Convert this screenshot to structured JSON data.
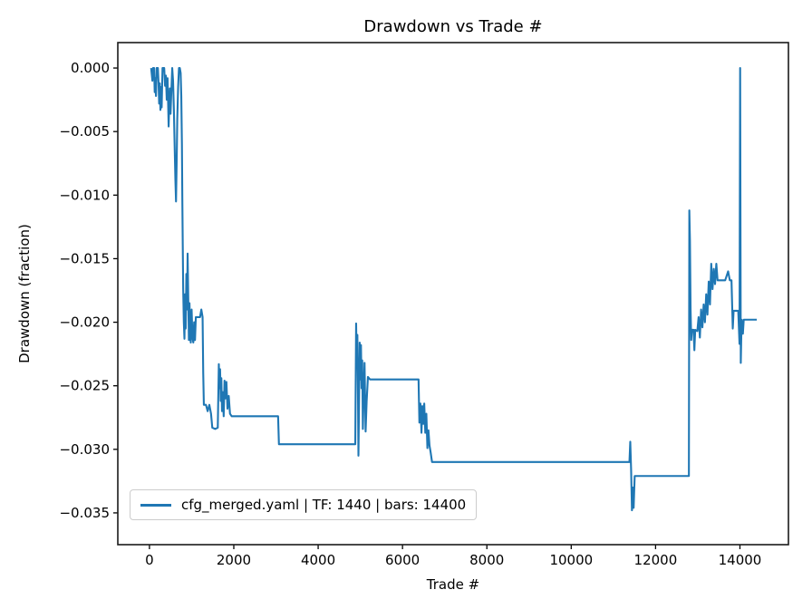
{
  "chart_data": {
    "type": "line",
    "title": "Drawdown vs Trade #",
    "xlabel": "Trade #",
    "ylabel": "Drawdown (fraction)",
    "xlim": [
      -750,
      15150
    ],
    "ylim": [
      -0.0375,
      0.002
    ],
    "grid": false,
    "legend_position": "lower-left",
    "line_color": "#1f77b4",
    "x_ticks": [
      {
        "v": 0,
        "label": "0"
      },
      {
        "v": 2000,
        "label": "2000"
      },
      {
        "v": 4000,
        "label": "4000"
      },
      {
        "v": 6000,
        "label": "6000"
      },
      {
        "v": 8000,
        "label": "8000"
      },
      {
        "v": 10000,
        "label": "10000"
      },
      {
        "v": 12000,
        "label": "12000"
      },
      {
        "v": 14000,
        "label": "14000"
      }
    ],
    "y_ticks": [
      {
        "v": 0.0,
        "label": "0.000"
      },
      {
        "v": -0.005,
        "label": "−0.005"
      },
      {
        "v": -0.01,
        "label": "−0.010"
      },
      {
        "v": -0.015,
        "label": "−0.015"
      },
      {
        "v": -0.02,
        "label": "−0.020"
      },
      {
        "v": -0.025,
        "label": "−0.025"
      },
      {
        "v": -0.03,
        "label": "−0.030"
      },
      {
        "v": -0.035,
        "label": "−0.035"
      }
    ],
    "series": [
      {
        "name": "cfg_merged.yaml | TF: 1440 | bars: 14400",
        "color": "#1f77b4",
        "points": [
          [
            40,
            0
          ],
          [
            70,
            -0.001
          ],
          [
            85,
            0
          ],
          [
            110,
            0
          ],
          [
            125,
            -0.0019
          ],
          [
            140,
            -0.0008
          ],
          [
            155,
            -0.0022
          ],
          [
            170,
            0
          ],
          [
            200,
            0
          ],
          [
            215,
            -0.0011
          ],
          [
            230,
            -0.0028
          ],
          [
            245,
            -0.0012
          ],
          [
            260,
            -0.0033
          ],
          [
            275,
            -0.0015
          ],
          [
            290,
            -0.0031
          ],
          [
            310,
            0
          ],
          [
            350,
            0
          ],
          [
            370,
            -0.0014
          ],
          [
            390,
            -0.0006
          ],
          [
            410,
            -0.0025
          ],
          [
            430,
            -0.0008
          ],
          [
            455,
            -0.0046
          ],
          [
            470,
            -0.0028
          ],
          [
            485,
            -0.0016
          ],
          [
            500,
            -0.0036
          ],
          [
            520,
            -0.0018
          ],
          [
            540,
            0
          ],
          [
            560,
            -0.001
          ],
          [
            580,
            -0.0034
          ],
          [
            600,
            -0.0065
          ],
          [
            615,
            -0.0088
          ],
          [
            630,
            -0.0105
          ],
          [
            645,
            -0.0075
          ],
          [
            660,
            -0.004
          ],
          [
            680,
            -0.0015
          ],
          [
            700,
            0
          ],
          [
            720,
            0
          ],
          [
            740,
            -0.0004
          ],
          [
            755,
            -0.0022
          ],
          [
            770,
            -0.006
          ],
          [
            780,
            -0.0105
          ],
          [
            790,
            -0.014
          ],
          [
            800,
            -0.0174
          ],
          [
            815,
            -0.02
          ],
          [
            830,
            -0.0213
          ],
          [
            845,
            -0.0178
          ],
          [
            860,
            -0.0205
          ],
          [
            875,
            -0.0162
          ],
          [
            890,
            -0.019
          ],
          [
            905,
            -0.0146
          ],
          [
            920,
            -0.018
          ],
          [
            935,
            -0.0214
          ],
          [
            950,
            -0.0185
          ],
          [
            965,
            -0.021
          ],
          [
            980,
            -0.0216
          ],
          [
            1000,
            -0.019
          ],
          [
            1020,
            -0.0212
          ],
          [
            1040,
            -0.0216
          ],
          [
            1060,
            -0.02
          ],
          [
            1080,
            -0.0214
          ],
          [
            1100,
            -0.0196
          ],
          [
            1150,
            -0.0196
          ],
          [
            1200,
            -0.0196
          ],
          [
            1230,
            -0.019
          ],
          [
            1260,
            -0.0196
          ],
          [
            1275,
            -0.024
          ],
          [
            1290,
            -0.0265
          ],
          [
            1340,
            -0.0265
          ],
          [
            1380,
            -0.027
          ],
          [
            1420,
            -0.0265
          ],
          [
            1460,
            -0.0272
          ],
          [
            1490,
            -0.0283
          ],
          [
            1560,
            -0.0284
          ],
          [
            1620,
            -0.0283
          ],
          [
            1645,
            -0.0233
          ],
          [
            1660,
            -0.0252
          ],
          [
            1675,
            -0.0237
          ],
          [
            1690,
            -0.0262
          ],
          [
            1705,
            -0.0244
          ],
          [
            1720,
            -0.027
          ],
          [
            1740,
            -0.0255
          ],
          [
            1760,
            -0.0274
          ],
          [
            1780,
            -0.0246
          ],
          [
            1800,
            -0.026
          ],
          [
            1825,
            -0.0247
          ],
          [
            1850,
            -0.0268
          ],
          [
            1880,
            -0.0258
          ],
          [
            1910,
            -0.0272
          ],
          [
            1950,
            -0.0274
          ],
          [
            2600,
            -0.0274
          ],
          [
            3050,
            -0.0274
          ],
          [
            3070,
            -0.0296
          ],
          [
            4880,
            -0.0296
          ],
          [
            4900,
            -0.0201
          ],
          [
            4915,
            -0.0232
          ],
          [
            4930,
            -0.021
          ],
          [
            4945,
            -0.026
          ],
          [
            4955,
            -0.0305
          ],
          [
            4970,
            -0.0262
          ],
          [
            4985,
            -0.0216
          ],
          [
            5000,
            -0.0245
          ],
          [
            5015,
            -0.0218
          ],
          [
            5030,
            -0.0252
          ],
          [
            5045,
            -0.023
          ],
          [
            5060,
            -0.0284
          ],
          [
            5080,
            -0.0255
          ],
          [
            5100,
            -0.0232
          ],
          [
            5125,
            -0.0286
          ],
          [
            5150,
            -0.0262
          ],
          [
            5180,
            -0.0243
          ],
          [
            5230,
            -0.0245
          ],
          [
            6380,
            -0.0245
          ],
          [
            6400,
            -0.0279
          ],
          [
            6425,
            -0.0264
          ],
          [
            6450,
            -0.0287
          ],
          [
            6470,
            -0.0266
          ],
          [
            6490,
            -0.028
          ],
          [
            6515,
            -0.0264
          ],
          [
            6540,
            -0.0287
          ],
          [
            6565,
            -0.0272
          ],
          [
            6590,
            -0.0299
          ],
          [
            6615,
            -0.0285
          ],
          [
            6640,
            -0.0297
          ],
          [
            6670,
            -0.0303
          ],
          [
            6700,
            -0.031
          ],
          [
            11380,
            -0.031
          ],
          [
            11400,
            -0.0294
          ],
          [
            11420,
            -0.0316
          ],
          [
            11440,
            -0.0348
          ],
          [
            11460,
            -0.033
          ],
          [
            11480,
            -0.0346
          ],
          [
            11505,
            -0.0321
          ],
          [
            12790,
            -0.0321
          ],
          [
            12800,
            -0.0112
          ],
          [
            12815,
            -0.0136
          ],
          [
            12830,
            -0.019
          ],
          [
            12845,
            -0.0214
          ],
          [
            12860,
            -0.0206
          ],
          [
            12900,
            -0.0206
          ],
          [
            12920,
            -0.0222
          ],
          [
            12940,
            -0.0206
          ],
          [
            12990,
            -0.0207
          ],
          [
            13020,
            -0.0196
          ],
          [
            13050,
            -0.0212
          ],
          [
            13080,
            -0.019
          ],
          [
            13110,
            -0.0204
          ],
          [
            13140,
            -0.0186
          ],
          [
            13170,
            -0.02
          ],
          [
            13200,
            -0.0178
          ],
          [
            13230,
            -0.0194
          ],
          [
            13260,
            -0.0168
          ],
          [
            13290,
            -0.0186
          ],
          [
            13320,
            -0.0154
          ],
          [
            13350,
            -0.0174
          ],
          [
            13380,
            -0.0158
          ],
          [
            13410,
            -0.017
          ],
          [
            13440,
            -0.0154
          ],
          [
            13470,
            -0.0167
          ],
          [
            13550,
            -0.0167
          ],
          [
            13650,
            -0.0167
          ],
          [
            13720,
            -0.016
          ],
          [
            13760,
            -0.0167
          ],
          [
            13800,
            -0.0167
          ],
          [
            13830,
            -0.0205
          ],
          [
            13850,
            -0.0191
          ],
          [
            13900,
            -0.0191
          ],
          [
            13960,
            -0.0191
          ],
          [
            13990,
            -0.0217
          ],
          [
            14005,
            0.0
          ],
          [
            14020,
            -0.0232
          ],
          [
            14040,
            -0.0198
          ],
          [
            14070,
            -0.0209
          ],
          [
            14090,
            -0.0198
          ],
          [
            14400,
            -0.0198
          ]
        ]
      }
    ]
  }
}
